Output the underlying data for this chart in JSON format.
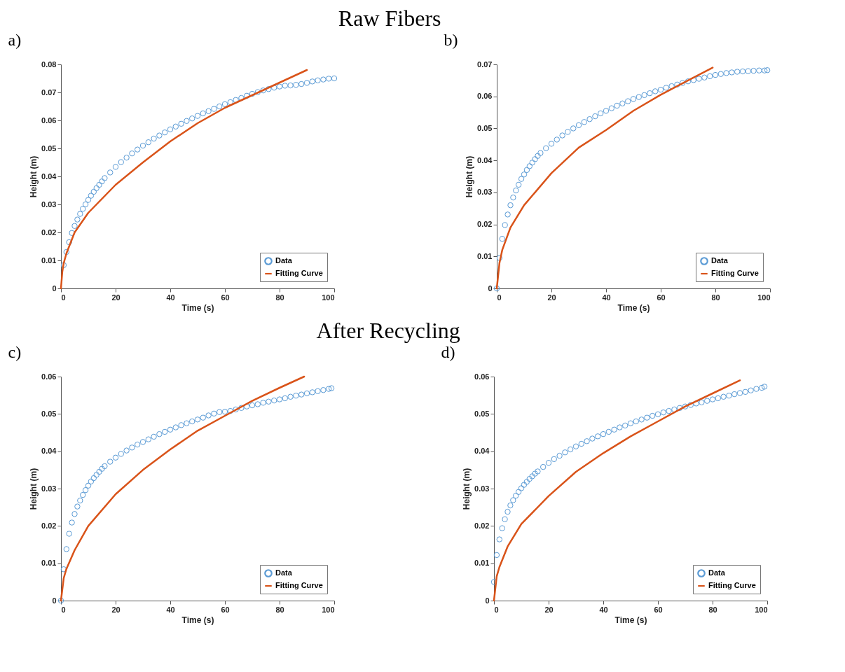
{
  "chart_data": [
    {
      "type": "scatter",
      "title": "Raw Fibers",
      "subtitle": "a)",
      "xlabel": "Time (s)",
      "ylabel": "Height (m)",
      "xlim": [
        0,
        100
      ],
      "xticks": [
        0,
        20,
        40,
        60,
        80,
        100
      ],
      "ylim": [
        0,
        0.08
      ],
      "yticks": [
        0,
        0.01,
        0.02,
        0.03,
        0.04,
        0.05,
        0.06,
        0.07,
        0.08
      ],
      "grid": false,
      "legend": "bottom right",
      "series": [
        {
          "name": "Data",
          "marker": "circle",
          "color": "#5b9bd5",
          "x": [
            1,
            2,
            3,
            4,
            5,
            6,
            7,
            8,
            9,
            10,
            11,
            12,
            13,
            14,
            15,
            16,
            18,
            20,
            22,
            24,
            26,
            28,
            30,
            32,
            34,
            36,
            38,
            40,
            42,
            44,
            46,
            48,
            50,
            52,
            54,
            56,
            58,
            60,
            62,
            64,
            66,
            68,
            70,
            72,
            74,
            76,
            78,
            80,
            82,
            84,
            86,
            88,
            90,
            92,
            94,
            96,
            98,
            100
          ],
          "values": [
            0.0083,
            0.013,
            0.0165,
            0.0198,
            0.0223,
            0.0246,
            0.0266,
            0.0284,
            0.03,
            0.0316,
            0.0331,
            0.0345,
            0.0358,
            0.037,
            0.0382,
            0.0394,
            0.0414,
            0.0434,
            0.0451,
            0.0467,
            0.0482,
            0.0496,
            0.051,
            0.0522,
            0.0535,
            0.0546,
            0.0557,
            0.0568,
            0.0578,
            0.0588,
            0.0598,
            0.0607,
            0.0616,
            0.0625,
            0.0633,
            0.0641,
            0.065,
            0.0658,
            0.0665,
            0.0673,
            0.068,
            0.0688,
            0.0695,
            0.0701,
            0.0707,
            0.0712,
            0.0717,
            0.0721,
            0.0724,
            0.0725,
            0.0727,
            0.073,
            0.0734,
            0.0739,
            0.0743,
            0.0746,
            0.0749,
            0.075
          ]
        },
        {
          "name": "Fitting Curve",
          "type": "line",
          "color": "#d95319",
          "x": [
            0,
            0.5,
            1,
            2,
            5,
            10,
            20,
            30,
            40,
            50,
            60,
            70,
            80,
            90
          ],
          "values": [
            0,
            0.006,
            0.009,
            0.0125,
            0.02,
            0.027,
            0.037,
            0.045,
            0.0525,
            0.059,
            0.0645,
            0.069,
            0.0735,
            0.078
          ]
        }
      ]
    },
    {
      "type": "scatter",
      "subtitle": "b)",
      "xlabel": "Time (s)",
      "ylabel": "Height (m)",
      "xlim": [
        0,
        100
      ],
      "xticks": [
        0,
        20,
        40,
        60,
        80,
        100
      ],
      "ylim": [
        0,
        0.07
      ],
      "yticks": [
        0,
        0.01,
        0.02,
        0.03,
        0.04,
        0.05,
        0.06,
        0.07
      ],
      "grid": false,
      "legend": "bottom right",
      "series": [
        {
          "name": "Data",
          "marker": "circle",
          "color": "#5b9bd5",
          "x": [
            0,
            1,
            2,
            3,
            4,
            5,
            6,
            7,
            8,
            9,
            10,
            11,
            12,
            13,
            14,
            15,
            16,
            18,
            20,
            22,
            24,
            26,
            28,
            30,
            32,
            34,
            36,
            38,
            40,
            42,
            44,
            46,
            48,
            50,
            52,
            54,
            56,
            58,
            60,
            62,
            64,
            66,
            68,
            70,
            72,
            74,
            76,
            78,
            80,
            82,
            84,
            86,
            88,
            90,
            92,
            94,
            96,
            98,
            99
          ],
          "values": [
            0,
            0.0095,
            0.0155,
            0.0198,
            0.0231,
            0.026,
            0.0284,
            0.0306,
            0.0324,
            0.0342,
            0.0356,
            0.037,
            0.0382,
            0.0393,
            0.0404,
            0.0414,
            0.0423,
            0.0438,
            0.0452,
            0.0465,
            0.0478,
            0.0489,
            0.05,
            0.051,
            0.052,
            0.0529,
            0.0538,
            0.0547,
            0.0555,
            0.0563,
            0.0571,
            0.0578,
            0.0585,
            0.0592,
            0.0598,
            0.0604,
            0.061,
            0.0616,
            0.0621,
            0.0627,
            0.0632,
            0.0637,
            0.0642,
            0.0647,
            0.0651,
            0.0655,
            0.0659,
            0.0663,
            0.0667,
            0.067,
            0.0673,
            0.0675,
            0.0677,
            0.0678,
            0.0679,
            0.068,
            0.0681,
            0.0681,
            0.0682
          ]
        },
        {
          "name": "Fitting Curve",
          "type": "line",
          "color": "#d95319",
          "x": [
            0,
            1,
            2,
            5,
            10,
            20,
            30,
            40,
            50,
            60,
            70,
            79
          ],
          "values": [
            0,
            0.008,
            0.012,
            0.019,
            0.026,
            0.036,
            0.044,
            0.0495,
            0.0555,
            0.0605,
            0.065,
            0.069
          ]
        }
      ]
    },
    {
      "type": "scatter",
      "title": "After Recycling",
      "subtitle": "c)",
      "xlabel": "Time (s)",
      "ylabel": "Height (m)",
      "xlim": [
        0,
        100
      ],
      "xticks": [
        0,
        20,
        40,
        60,
        80,
        100
      ],
      "ylim": [
        0,
        0.06
      ],
      "yticks": [
        0,
        0.01,
        0.02,
        0.03,
        0.04,
        0.05,
        0.06
      ],
      "grid": false,
      "legend": "bottom right",
      "series": [
        {
          "name": "Data",
          "marker": "circle",
          "color": "#5b9bd5",
          "x": [
            0,
            1,
            2,
            3,
            4,
            5,
            6,
            7,
            8,
            9,
            10,
            11,
            12,
            13,
            14,
            15,
            16,
            18,
            20,
            22,
            24,
            26,
            28,
            30,
            32,
            34,
            36,
            38,
            40,
            42,
            44,
            46,
            48,
            50,
            52,
            54,
            56,
            58,
            60,
            62,
            64,
            66,
            68,
            70,
            72,
            74,
            76,
            78,
            80,
            82,
            84,
            86,
            88,
            90,
            92,
            94,
            96,
            98,
            99
          ],
          "values": [
            0,
            0.0084,
            0.0138,
            0.0179,
            0.0209,
            0.0232,
            0.0252,
            0.0268,
            0.0283,
            0.0296,
            0.0308,
            0.0319,
            0.0328,
            0.0337,
            0.0345,
            0.0353,
            0.036,
            0.0372,
            0.0383,
            0.0393,
            0.0402,
            0.041,
            0.0418,
            0.0425,
            0.0432,
            0.0439,
            0.0446,
            0.0452,
            0.0458,
            0.0464,
            0.047,
            0.0475,
            0.048,
            0.0485,
            0.049,
            0.0496,
            0.0501,
            0.0505,
            0.0506,
            0.0508,
            0.0512,
            0.0516,
            0.052,
            0.0523,
            0.0526,
            0.053,
            0.0533,
            0.0536,
            0.0539,
            0.0542,
            0.0546,
            0.0549,
            0.0552,
            0.0555,
            0.0558,
            0.0561,
            0.0564,
            0.0567,
            0.0569
          ]
        },
        {
          "name": "Fitting Curve",
          "type": "line",
          "color": "#d95319",
          "x": [
            0,
            1,
            2,
            5,
            10,
            20,
            30,
            40,
            50,
            60,
            70,
            80,
            89
          ],
          "values": [
            0,
            0.006,
            0.0085,
            0.0135,
            0.02,
            0.0285,
            0.035,
            0.0405,
            0.0455,
            0.0495,
            0.0535,
            0.057,
            0.06
          ]
        }
      ]
    },
    {
      "type": "scatter",
      "subtitle": "d)",
      "xlabel": "Time (s)",
      "ylabel": "Height (m)",
      "xlim": [
        0,
        100
      ],
      "xticks": [
        0,
        20,
        40,
        60,
        80,
        100
      ],
      "ylim": [
        0,
        0.06
      ],
      "yticks": [
        0,
        0.01,
        0.02,
        0.03,
        0.04,
        0.05,
        0.06
      ],
      "grid": false,
      "legend": "bottom right",
      "series": [
        {
          "name": "Data",
          "marker": "circle",
          "color": "#5b9bd5",
          "x": [
            0,
            1,
            2,
            3,
            4,
            5,
            6,
            7,
            8,
            9,
            10,
            11,
            12,
            13,
            14,
            15,
            16,
            18,
            20,
            22,
            24,
            26,
            28,
            30,
            32,
            34,
            36,
            38,
            40,
            42,
            44,
            46,
            48,
            50,
            52,
            54,
            56,
            58,
            60,
            62,
            64,
            66,
            68,
            70,
            72,
            74,
            76,
            78,
            80,
            82,
            84,
            86,
            88,
            90,
            92,
            94,
            96,
            98,
            99
          ],
          "values": [
            0.005,
            0.0122,
            0.0164,
            0.0194,
            0.0218,
            0.0238,
            0.0255,
            0.0269,
            0.0281,
            0.0291,
            0.0301,
            0.031,
            0.0318,
            0.0326,
            0.0333,
            0.034,
            0.0346,
            0.0358,
            0.0369,
            0.0379,
            0.0388,
            0.0397,
            0.0405,
            0.0413,
            0.042,
            0.0427,
            0.0434,
            0.044,
            0.0446,
            0.0452,
            0.0458,
            0.0464,
            0.0469,
            0.0475,
            0.048,
            0.0485,
            0.049,
            0.0495,
            0.0499,
            0.0504,
            0.0508,
            0.0512,
            0.0516,
            0.052,
            0.0524,
            0.0528,
            0.0531,
            0.0535,
            0.0539,
            0.0542,
            0.0546,
            0.0549,
            0.0553,
            0.0556,
            0.0559,
            0.0563,
            0.0567,
            0.057,
            0.0573
          ]
        },
        {
          "name": "Fitting Curve",
          "type": "line",
          "color": "#d95319",
          "x": [
            0,
            1,
            2,
            5,
            10,
            20,
            30,
            40,
            50,
            60,
            70,
            80,
            90
          ],
          "values": [
            0,
            0.0065,
            0.009,
            0.0145,
            0.0205,
            0.028,
            0.0345,
            0.0395,
            0.044,
            0.048,
            0.052,
            0.0555,
            0.059
          ]
        }
      ]
    }
  ]
}
